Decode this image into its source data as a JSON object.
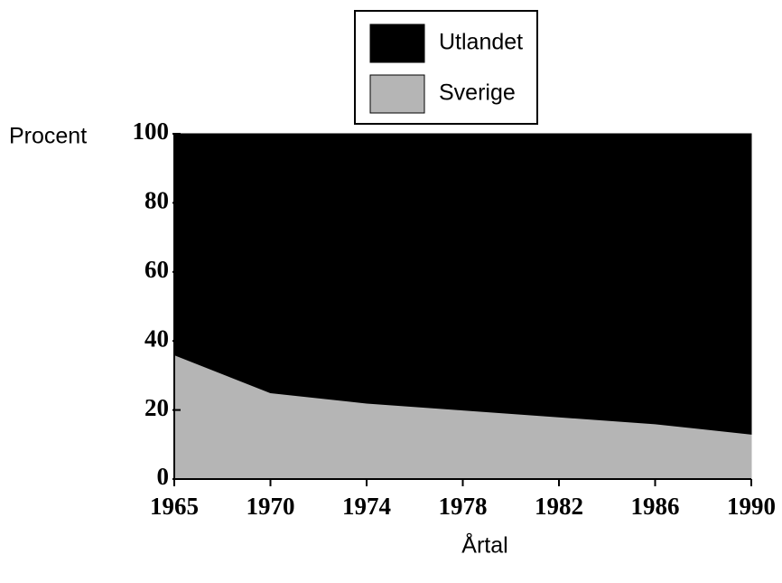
{
  "chart_data": {
    "type": "area",
    "stacked": true,
    "categories": [
      "1965",
      "1970",
      "1974",
      "1978",
      "1982",
      "1986",
      "1990"
    ],
    "series": [
      {
        "name": "Sverige",
        "color": "#b5b5b5",
        "values": [
          36,
          25,
          22,
          20,
          18,
          16,
          13
        ]
      },
      {
        "name": "Utlandet",
        "color": "#000000",
        "values": [
          64,
          75,
          78,
          80,
          82,
          84,
          87
        ]
      }
    ],
    "ylabel": "Procent",
    "xlabel": "Årtal",
    "ylim": [
      0,
      100
    ],
    "yticks": [
      0,
      20,
      40,
      60,
      80,
      100
    ],
    "legend": "top"
  }
}
